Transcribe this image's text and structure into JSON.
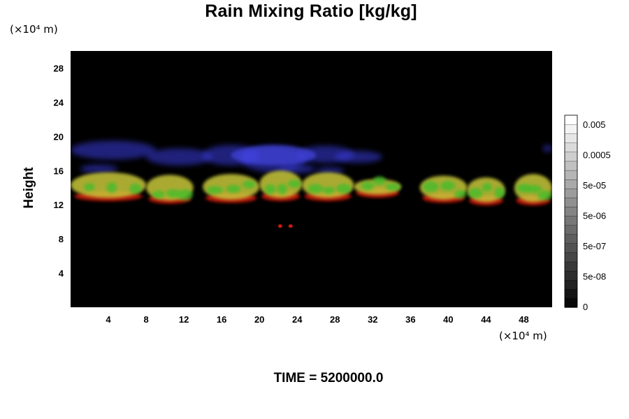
{
  "chart_data": {
    "type": "heatmap",
    "title": "Rain Mixing Ratio [kg/kg]",
    "ylabel": "Height",
    "x_unit": "(×10⁴ m)",
    "y_unit": "(×10⁴ m)",
    "x_ticks": [
      4,
      8,
      12,
      16,
      20,
      24,
      28,
      32,
      36,
      40,
      44,
      48
    ],
    "y_ticks": [
      4,
      8,
      12,
      16,
      20,
      24,
      28
    ],
    "xlim": [
      0,
      51
    ],
    "ylim": [
      0,
      30
    ],
    "background": "#000000",
    "colorbar": {
      "labels": [
        "0.005",
        "0.0005",
        "5e-05",
        "5e-06",
        "5e-07",
        "5e-08",
        "0"
      ],
      "levels": 21,
      "colors": [
        "#000000",
        "#ffffff"
      ]
    },
    "layers": [
      {
        "color_name": "blue",
        "color": "#3a3ee0",
        "y_range": [
          15.5,
          19.5
        ]
      },
      {
        "color_name": "yellow",
        "color": "#c8c83a",
        "y_range": [
          12.5,
          16
        ]
      },
      {
        "color_name": "green",
        "color": "#3cbe2c",
        "y_range": [
          12,
          15.5
        ]
      },
      {
        "color_name": "red",
        "color": "#cc1a10",
        "y_range": [
          11,
          13.5
        ]
      }
    ],
    "clouds": [
      {
        "x": [
          0,
          8
        ],
        "y": [
          12.8,
          15.8
        ]
      },
      {
        "x": [
          8,
          13
        ],
        "y": [
          12.5,
          15.5
        ]
      },
      {
        "x": [
          14,
          20
        ],
        "y": [
          12.6,
          15.6
        ]
      },
      {
        "x": [
          20,
          24.5
        ],
        "y": [
          12.8,
          16
        ]
      },
      {
        "x": [
          24.5,
          30
        ],
        "y": [
          12.8,
          15.8
        ]
      },
      {
        "x": [
          30,
          35
        ],
        "y": [
          13.2,
          15
        ]
      },
      {
        "x": [
          37,
          42
        ],
        "y": [
          12.6,
          15.4
        ]
      },
      {
        "x": [
          42,
          46
        ],
        "y": [
          12.3,
          15.2
        ]
      },
      {
        "x": [
          47,
          51
        ],
        "y": [
          12.3,
          15.6
        ]
      }
    ]
  },
  "footer": {
    "time_label": "TIME = 5200000.0"
  }
}
